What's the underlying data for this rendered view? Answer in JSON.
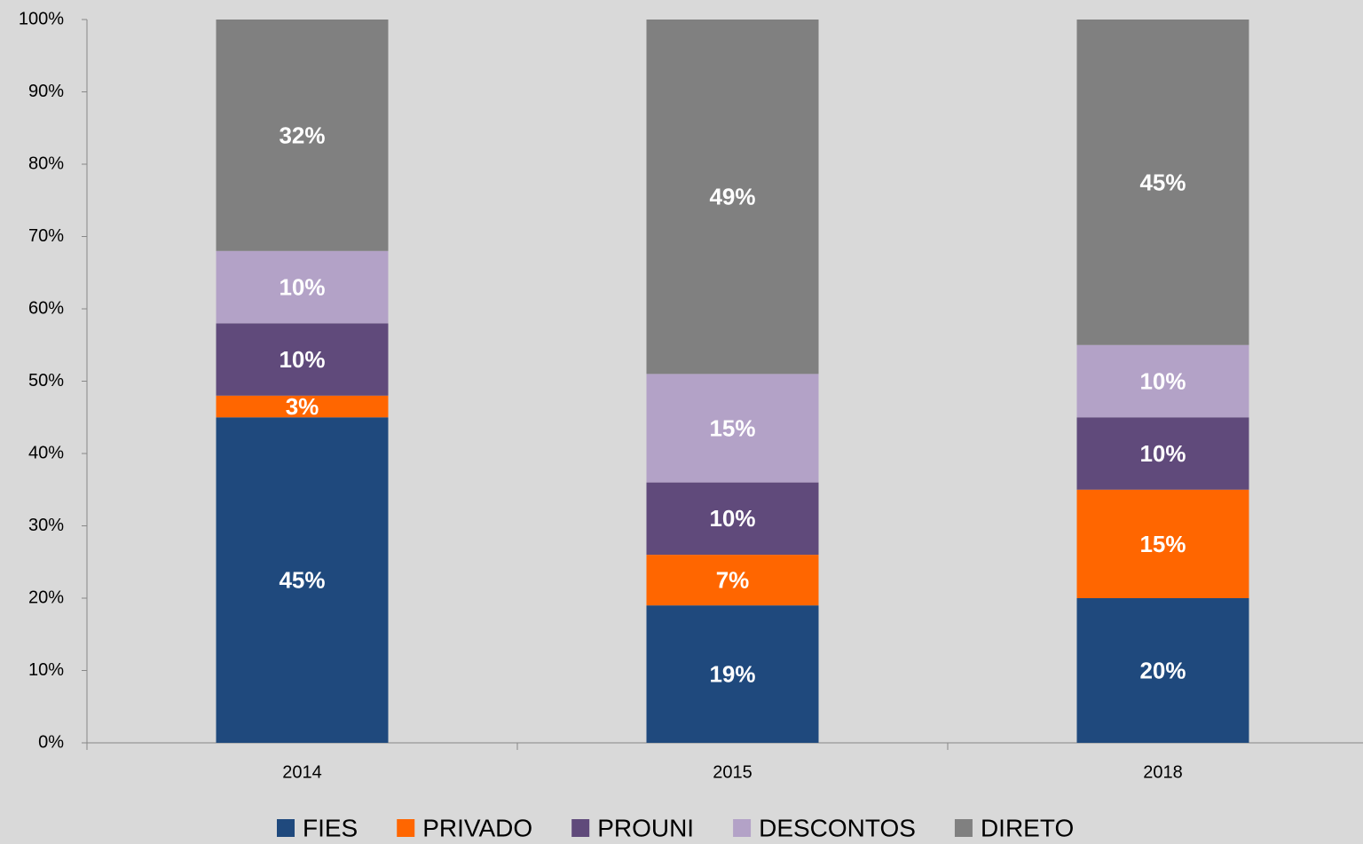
{
  "chart_data": {
    "type": "stacked_bar",
    "categories": [
      "2014",
      "2015",
      "2018"
    ],
    "series": [
      {
        "name": "FIES",
        "color": "#1f497d",
        "values": [
          45,
          19,
          20
        ],
        "value_labels": [
          "45%",
          "19%",
          "20%"
        ]
      },
      {
        "name": "PRIVADO",
        "color": "#ff6600",
        "values": [
          3,
          7,
          15
        ],
        "value_labels": [
          "3%",
          "7%",
          "15%"
        ]
      },
      {
        "name": "PROUNI",
        "color": "#604a7b",
        "values": [
          10,
          10,
          10
        ],
        "value_labels": [
          "10%",
          "10%",
          "10%"
        ]
      },
      {
        "name": "DESCONTOS",
        "color": "#b3a2c7",
        "values": [
          10,
          15,
          10
        ],
        "value_labels": [
          "10%",
          "15%",
          "10%"
        ]
      },
      {
        "name": "DIRETO",
        "color": "#808080",
        "values": [
          32,
          49,
          45
        ],
        "value_labels": [
          "32%",
          "49%",
          "45%"
        ]
      }
    ],
    "ylim": [
      0,
      100
    ],
    "yticks": [
      {
        "value": 0,
        "label": "0%"
      },
      {
        "value": 10,
        "label": "10%"
      },
      {
        "value": 20,
        "label": "20%"
      },
      {
        "value": 30,
        "label": "30%"
      },
      {
        "value": 40,
        "label": "40%"
      },
      {
        "value": 50,
        "label": "50%"
      },
      {
        "value": 60,
        "label": "60%"
      },
      {
        "value": 70,
        "label": "70%"
      },
      {
        "value": 80,
        "label": "80%"
      },
      {
        "value": 90,
        "label": "90%"
      },
      {
        "value": 100,
        "label": "100%"
      }
    ],
    "legend": "bottom"
  }
}
